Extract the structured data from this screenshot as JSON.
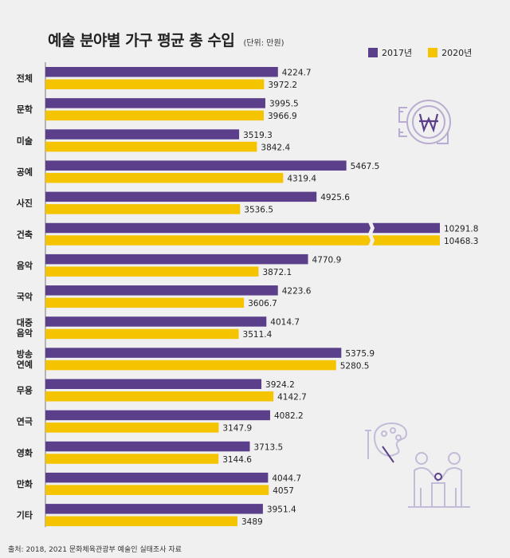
{
  "chart_data": {
    "type": "bar",
    "orientation": "horizontal",
    "title": "예술 분야별 가구 평균 총 수입",
    "unit": "(단위: 만원)",
    "source": "출처: 2018, 2021 문화체육관광부 예술인 실태조사 자료",
    "categories": [
      "전체",
      "문학",
      "미술",
      "공예",
      "사진",
      "건축",
      "음악",
      "국악",
      "대중\n음악",
      "방송\n연예",
      "무용",
      "연극",
      "영화",
      "만화",
      "기타"
    ],
    "series": [
      {
        "name": "2017년",
        "color": "#5b3f8b",
        "values": [
          4224.7,
          3995.5,
          3519.3,
          5467.5,
          4925.6,
          10291.8,
          4770.9,
          4223.6,
          4014.7,
          5375.9,
          3924.2,
          4082.2,
          3713.5,
          4044.7,
          3951.4
        ],
        "labels": [
          "4224.7",
          "3995.5",
          "3519.3",
          "5467.5",
          "4925.6",
          "10291.8",
          "4770.9",
          "4223.6",
          "4014.7",
          "5375.9",
          "3924.2",
          "4082.2",
          "3713.5",
          "4044.7",
          "3951.4"
        ]
      },
      {
        "name": "2020년",
        "color": "#f5c400",
        "values": [
          3972.2,
          3966.9,
          3842.4,
          4319.4,
          3536.5,
          10468.3,
          3872.1,
          3606.7,
          3511.4,
          5280.5,
          4142.7,
          3147.9,
          3144.6,
          4057,
          3489
        ],
        "labels": [
          "3972.2",
          "3966.9",
          "3842.4",
          "4319.4",
          "3536.5",
          "10468.3",
          "3872.1",
          "3606.7",
          "3511.4",
          "5280.5",
          "4142.7",
          "3147.9",
          "3144.6",
          "4057",
          "3489"
        ]
      }
    ],
    "axis_break": true,
    "grid": false,
    "legend_position": "top-right"
  },
  "icons": [
    "coin-won-icon",
    "art-palette-icon",
    "people-discussion-icon"
  ]
}
